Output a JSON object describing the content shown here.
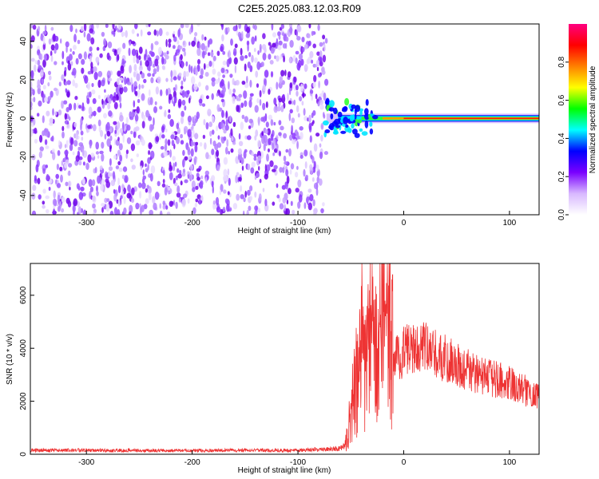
{
  "title": "C2E5.2025.083.12.03.R09",
  "chart_data": [
    {
      "type": "heatmap",
      "xlabel": "Height of straight line (km)",
      "ylabel": "Frequency (Hz)",
      "xlim": [
        -353,
        128
      ],
      "ylim": [
        -50,
        49
      ],
      "xticks": [
        "-300",
        "-200",
        "-100",
        "0",
        "100"
      ],
      "xtick_values": [
        -300,
        -200,
        -100,
        0,
        100
      ],
      "yticks": [
        "-40",
        "-20",
        "0",
        "20",
        "40"
      ],
      "ytick_values": [
        -40,
        -20,
        0,
        20,
        40
      ],
      "noise_region_x": [
        -353,
        -73
      ],
      "signal_line_x": [
        -73,
        128
      ],
      "signal_line_freq": 0,
      "colorbar": {
        "label": "Normalized spectral amplitude",
        "range": [
          0.0,
          1.0
        ],
        "ticks": [
          "0.0",
          "0.2",
          "0.4",
          "0.6",
          "0.8"
        ],
        "tick_values": [
          0.0,
          0.2,
          0.4,
          0.6,
          0.8
        ],
        "colors": [
          "#ffffff",
          "#d8b8ff",
          "#7a00ff",
          "#0000ff",
          "#00ffff",
          "#00ff00",
          "#ffff00",
          "#ff8000",
          "#ff0000",
          "#ff0080"
        ]
      }
    },
    {
      "type": "line",
      "xlabel": "Height of straight line (km)",
      "ylabel": "SNR (10 * v/v)",
      "xlim": [
        -353,
        128
      ],
      "ylim": [
        0,
        7200
      ],
      "xticks": [
        "-300",
        "-200",
        "-100",
        "0",
        "100"
      ],
      "xtick_values": [
        -300,
        -200,
        -100,
        0,
        100
      ],
      "yticks": [
        "0",
        "2000",
        "4000",
        "6000"
      ],
      "ytick_values": [
        0,
        2000,
        4000,
        6000
      ],
      "line_color": "#ee3333",
      "series": [
        {
          "x": [
            -353,
            -300,
            -250,
            -200,
            -150,
            -100,
            -80,
            -60,
            -55,
            -50,
            -45,
            -40,
            -35,
            -30,
            -25,
            -20,
            -15,
            -10,
            -5,
            0,
            10,
            20,
            30,
            40,
            50,
            60,
            70,
            80,
            90,
            100,
            110,
            120,
            128
          ],
          "values": [
            150,
            150,
            140,
            140,
            150,
            150,
            180,
            220,
            400,
            1500,
            2800,
            3600,
            3400,
            4200,
            3900,
            4800,
            4700,
            3800,
            3600,
            3900,
            4100,
            4000,
            3800,
            3600,
            3400,
            3200,
            3000,
            2900,
            2800,
            2700,
            2500,
            2300,
            2200
          ]
        }
      ]
    }
  ]
}
